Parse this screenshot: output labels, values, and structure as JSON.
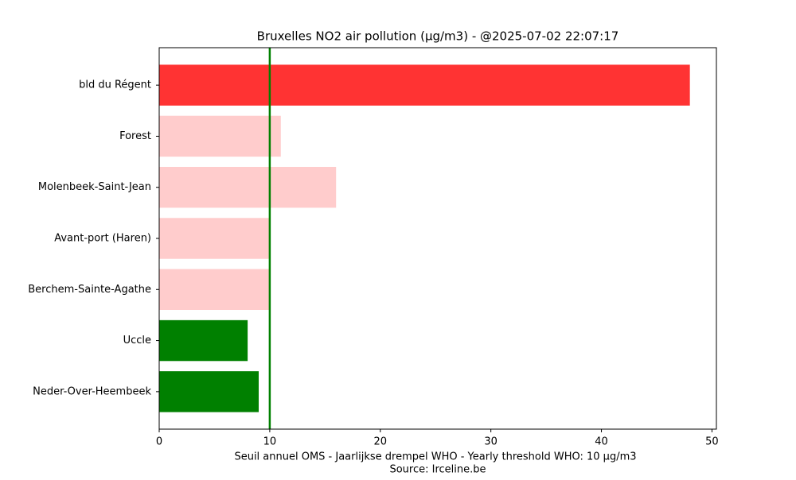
{
  "chart_data": {
    "type": "barh",
    "title": "Bruxelles NO2 air pollution (µg/m3) - @2025-07-02 22:07:17",
    "xlabel": [
      "Seuil annuel OMS - Jaarlijkse drempel WHO - Yearly threshold WHO: 10 µg/m3",
      "Source: Irceline.be"
    ],
    "categories": [
      "bld du Régent",
      "Forest",
      "Molenbeek-Saint-Jean",
      "Avant-port (Haren)",
      "Berchem-Sainte-Agathe",
      "Uccle",
      "Neder-Over-Heembeek"
    ],
    "values": [
      48,
      11,
      16,
      10,
      10,
      8,
      9
    ],
    "colors": [
      "#ff3333",
      "#ffcccc",
      "#ffcccc",
      "#ffcccc",
      "#ffcccc",
      "#008000",
      "#008000"
    ],
    "threshold": 10,
    "threshold_color": "#008000",
    "xlim": [
      0,
      50.4
    ],
    "xticks": [
      0,
      10,
      20,
      30,
      40,
      50
    ]
  }
}
